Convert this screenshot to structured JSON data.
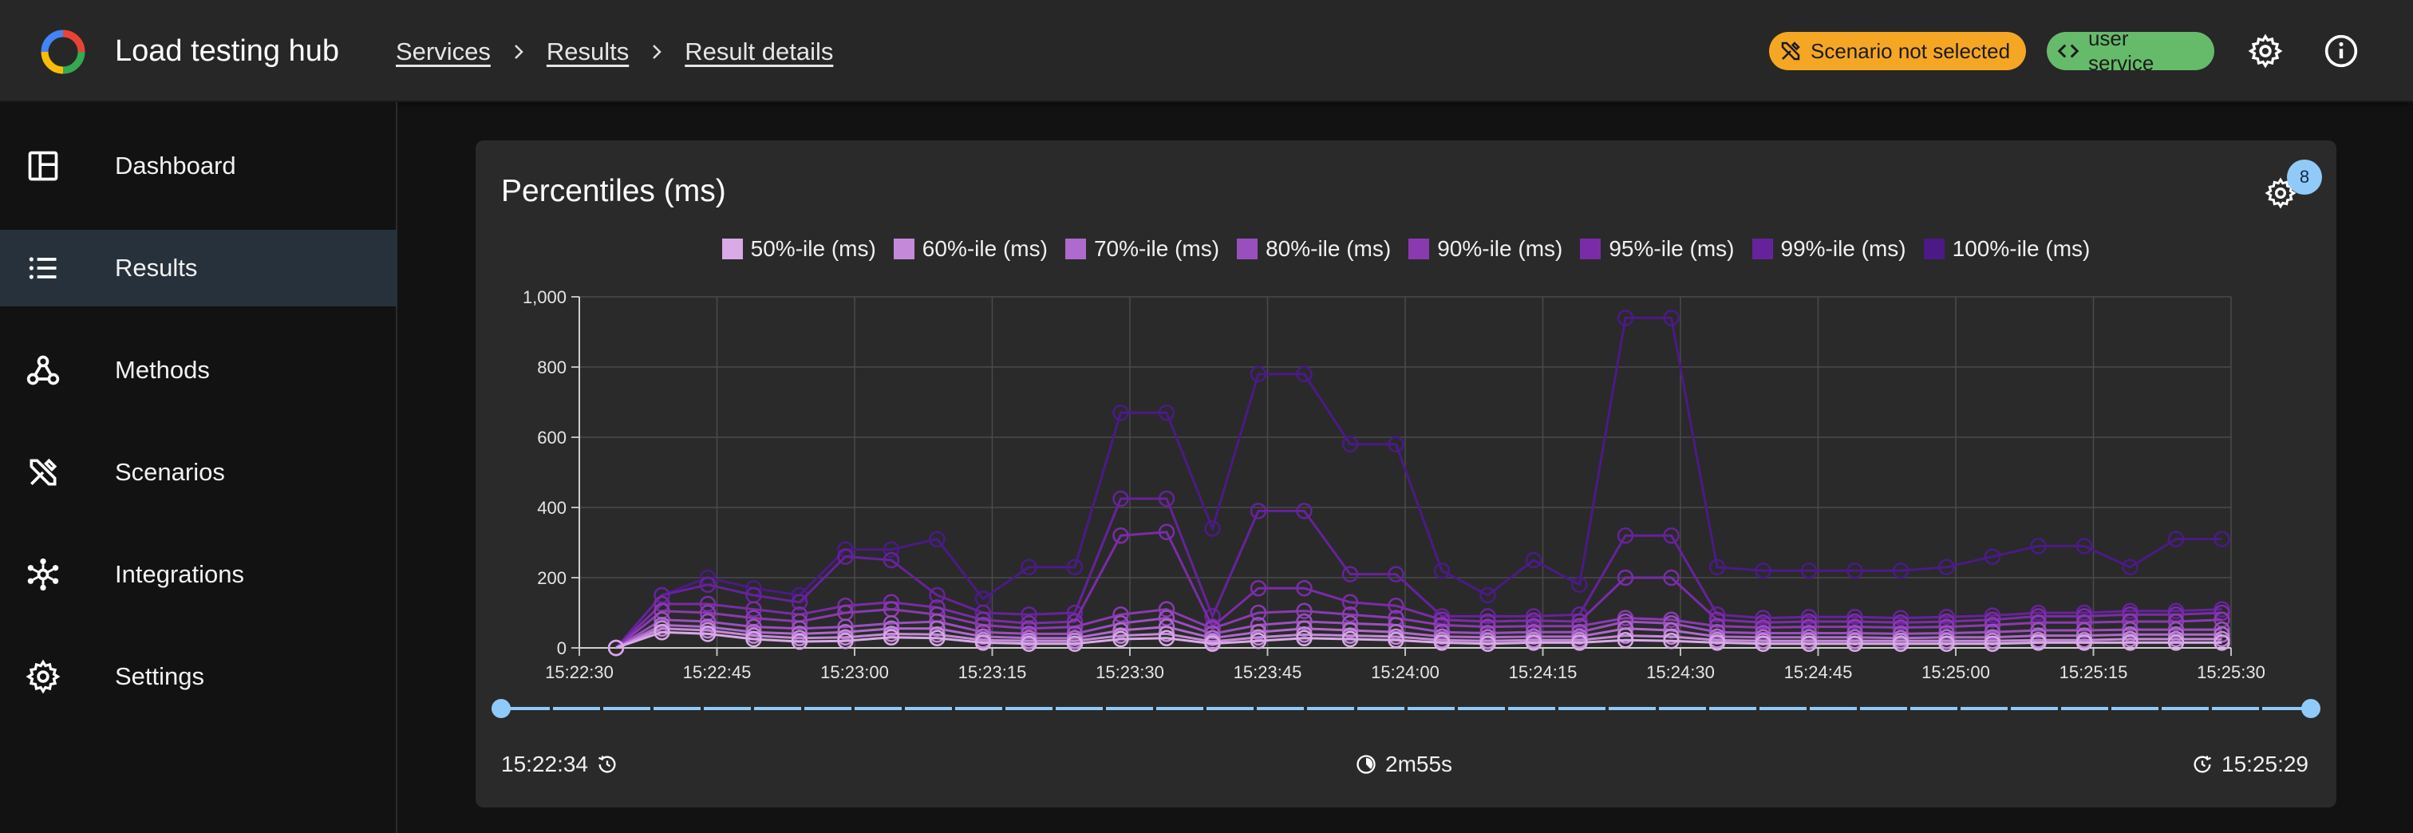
{
  "header": {
    "app_title": "Load testing hub",
    "breadcrumbs": [
      "Services",
      "Results",
      "Result details"
    ],
    "scenario_chip": "Scenario not selected",
    "service_chip": "user service",
    "colors": {
      "scenario_chip": "#f5a623",
      "service_chip": "#66bb6a"
    },
    "icons": [
      "settings-icon",
      "info-icon"
    ]
  },
  "sidebar": {
    "items": [
      {
        "label": "Dashboard",
        "icon": "dashboard-icon"
      },
      {
        "label": "Results",
        "icon": "list-icon",
        "active": true
      },
      {
        "label": "Methods",
        "icon": "webhook-icon"
      },
      {
        "label": "Scenarios",
        "icon": "tools-icon"
      },
      {
        "label": "Integrations",
        "icon": "hub-icon"
      },
      {
        "label": "Settings",
        "icon": "gear-icon"
      }
    ]
  },
  "card": {
    "title": "Percentiles (ms)",
    "settings_badge": "8"
  },
  "footer": {
    "start_time": "15:22:34",
    "duration": "2m55s",
    "end_time": "15:25:29"
  },
  "chart_data": {
    "type": "line",
    "title": "Percentiles (ms)",
    "xlabel": "",
    "ylabel": "",
    "ylim": [
      0,
      1000
    ],
    "y_ticks": [
      "0",
      "200",
      "400",
      "600",
      "800",
      "1,000"
    ],
    "x_ticks": [
      "15:22:30",
      "15:22:45",
      "15:23:00",
      "15:23:15",
      "15:23:30",
      "15:23:45",
      "15:24:00",
      "15:24:15",
      "15:24:30",
      "15:24:45",
      "15:25:00",
      "15:25:15",
      "15:25:30"
    ],
    "x": [
      "15:22:34",
      "15:22:39",
      "15:22:44",
      "15:22:49",
      "15:22:54",
      "15:22:59",
      "15:23:04",
      "15:23:09",
      "15:23:14",
      "15:23:19",
      "15:23:24",
      "15:23:29",
      "15:23:34",
      "15:23:39",
      "15:23:44",
      "15:23:49",
      "15:23:54",
      "15:23:59",
      "15:24:04",
      "15:24:09",
      "15:24:14",
      "15:24:19",
      "15:24:24",
      "15:24:29",
      "15:24:34",
      "15:24:39",
      "15:24:44",
      "15:24:49",
      "15:24:54",
      "15:24:59",
      "15:25:04",
      "15:25:09",
      "15:25:14",
      "15:25:19",
      "15:25:24",
      "15:25:29"
    ],
    "grid": true,
    "legend_position": "top-center",
    "series": [
      {
        "name": "50%-ile (ms)",
        "color": "#d9a9e8",
        "values": [
          0,
          45,
          40,
          25,
          18,
          20,
          30,
          28,
          15,
          12,
          12,
          25,
          28,
          12,
          20,
          28,
          25,
          22,
          15,
          12,
          15,
          15,
          22,
          20,
          15,
          12,
          12,
          12,
          12,
          12,
          12,
          15,
          15,
          15,
          15,
          15
        ]
      },
      {
        "name": "60%-ile (ms)",
        "color": "#c48ad9",
        "values": [
          0,
          55,
          50,
          35,
          28,
          30,
          40,
          38,
          22,
          20,
          20,
          35,
          40,
          18,
          30,
          38,
          35,
          32,
          22,
          20,
          22,
          22,
          35,
          32,
          22,
          20,
          20,
          20,
          20,
          20,
          20,
          22,
          22,
          25,
          25,
          25
        ]
      },
      {
        "name": "70%-ile (ms)",
        "color": "#ae6acc",
        "values": [
          0,
          65,
          60,
          45,
          40,
          45,
          55,
          55,
          32,
          28,
          28,
          50,
          60,
          28,
          45,
          55,
          50,
          45,
          32,
          30,
          32,
          32,
          55,
          50,
          32,
          30,
          30,
          30,
          28,
          30,
          30,
          35,
          35,
          38,
          38,
          38
        ]
      },
      {
        "name": "80%-ile (ms)",
        "color": "#9a4fbf",
        "values": [
          0,
          80,
          75,
          60,
          55,
          60,
          70,
          75,
          45,
          40,
          40,
          70,
          85,
          40,
          65,
          75,
          70,
          65,
          45,
          42,
          45,
          45,
          75,
          70,
          45,
          42,
          42,
          42,
          40,
          42,
          45,
          50,
          50,
          52,
          52,
          52
        ]
      },
      {
        "name": "90%-ile (ms)",
        "color": "#8a3ab0",
        "values": [
          0,
          105,
          100,
          85,
          75,
          100,
          110,
          95,
          65,
          55,
          60,
          95,
          110,
          55,
          100,
          105,
          95,
          85,
          65,
          60,
          62,
          62,
          85,
          80,
          62,
          58,
          60,
          60,
          58,
          60,
          65,
          72,
          72,
          75,
          75,
          80
        ]
      },
      {
        "name": "95%-ile (ms)",
        "color": "#7a2ca8",
        "values": [
          0,
          125,
          125,
          110,
          95,
          120,
          130,
          115,
          80,
          70,
          75,
          320,
          330,
          60,
          170,
          170,
          130,
          120,
          80,
          75,
          78,
          75,
          200,
          200,
          80,
          72,
          75,
          75,
          72,
          75,
          80,
          90,
          90,
          95,
          95,
          100
        ]
      },
      {
        "name": "99%-ile (ms)",
        "color": "#66229b",
        "values": [
          0,
          150,
          180,
          150,
          130,
          260,
          250,
          150,
          100,
          95,
          100,
          425,
          425,
          90,
          390,
          390,
          210,
          210,
          90,
          90,
          90,
          95,
          320,
          320,
          95,
          85,
          88,
          88,
          85,
          88,
          92,
          100,
          100,
          105,
          105,
          110
        ]
      },
      {
        "name": "100%-ile (ms)",
        "color": "#4b1a86",
        "values": [
          0,
          150,
          200,
          170,
          150,
          280,
          280,
          310,
          140,
          230,
          230,
          670,
          670,
          340,
          780,
          780,
          580,
          580,
          220,
          150,
          250,
          180,
          940,
          940,
          230,
          220,
          220,
          220,
          220,
          230,
          260,
          290,
          290,
          230,
          310,
          310
        ]
      }
    ]
  }
}
